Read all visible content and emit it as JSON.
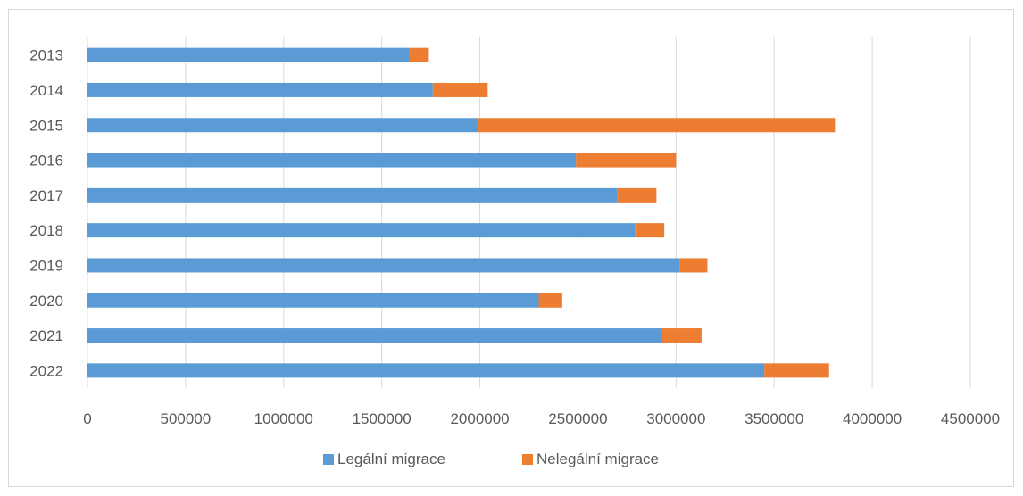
{
  "chart_data": {
    "type": "bar",
    "orientation": "horizontal",
    "stacked": true,
    "categories": [
      "2013",
      "2014",
      "2015",
      "2016",
      "2017",
      "2018",
      "2019",
      "2020",
      "2021",
      "2022"
    ],
    "series": [
      {
        "name": "Legální migrace",
        "color": "#5b9bd5",
        "values": [
          1640000,
          1760000,
          1990000,
          2490000,
          2700000,
          2790000,
          3020000,
          2300000,
          2930000,
          3450000
        ]
      },
      {
        "name": "Nelegální migrace",
        "color": "#ed7d31",
        "values": [
          100000,
          280000,
          1820000,
          510000,
          200000,
          150000,
          140000,
          120000,
          200000,
          330000
        ]
      }
    ],
    "x_ticks": [
      "0",
      "500000",
      "1000000",
      "1500000",
      "2000000",
      "2500000",
      "3000000",
      "3500000",
      "4000000",
      "4500000"
    ],
    "xlim": [
      0,
      4500000
    ],
    "grid": true,
    "legend_position": "bottom"
  }
}
